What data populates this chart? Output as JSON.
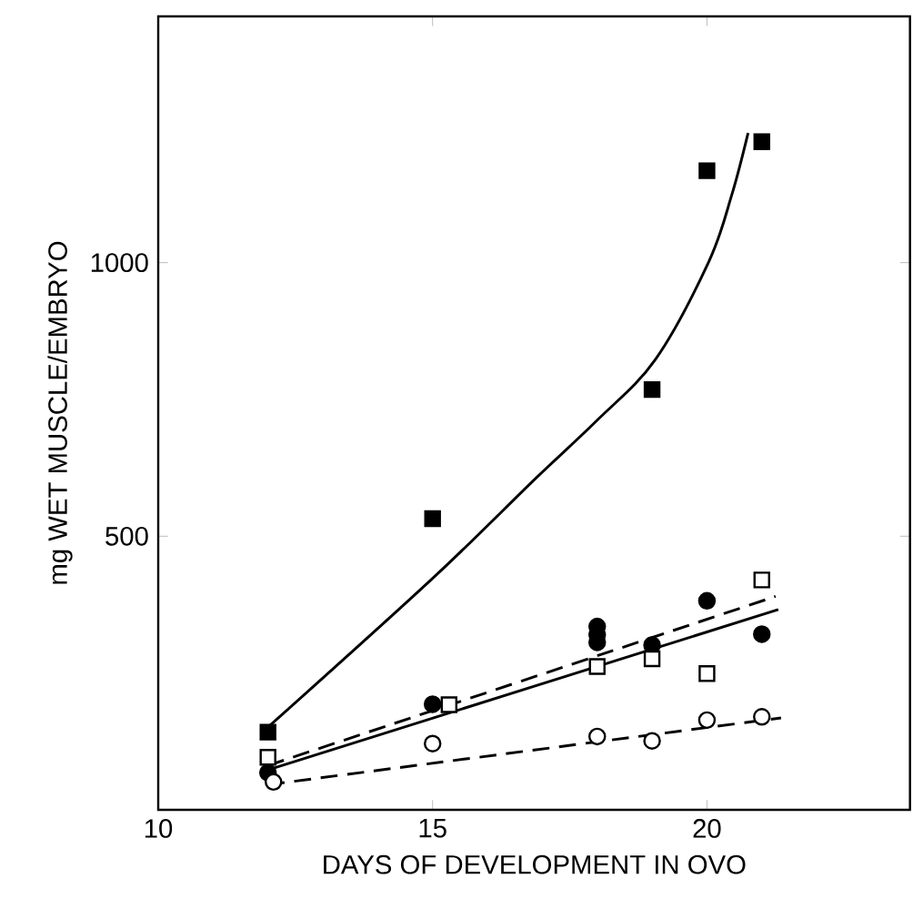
{
  "chart_data": {
    "type": "scatter",
    "xlabel": "DAYS OF DEVELOPMENT IN OVO",
    "ylabel": "mg WET MUSCLE/EMBRYO",
    "xlim": [
      10,
      23.7
    ],
    "ylim": [
      0,
      1450
    ],
    "xticks": [
      10,
      15,
      20
    ],
    "yticks": [
      500,
      1000
    ],
    "series": [
      {
        "color": "#000000",
        "marker": "square",
        "x": [
          12,
          15,
          19,
          20,
          21
        ],
        "values": [
          142,
          532,
          768,
          1168,
          1221
        ]
      },
      {
        "color": "#000000",
        "marker": "circle",
        "x": [
          12,
          15,
          18,
          18,
          18,
          19,
          20,
          21
        ],
        "values": [
          68,
          193,
          306,
          320,
          335,
          301,
          382,
          321
        ]
      },
      {
        "color": "#ffffff",
        "marker": "square",
        "x": [
          12,
          15.3,
          18,
          19,
          20,
          21
        ],
        "values": [
          96,
          192,
          262,
          276,
          249,
          420
        ]
      },
      {
        "color": "#ffffff",
        "marker": "circle",
        "x": [
          12.1,
          15,
          18,
          19,
          20,
          21
        ],
        "values": [
          51,
          121,
          134,
          126,
          164,
          170
        ]
      },
      {
        "type": "line",
        "color": "#000000",
        "marker": "none",
        "line_style": "solid",
        "x": [
          12,
          15,
          16.83,
          18,
          19.06,
          20.03,
          20.45,
          20.75
        ],
        "values": [
          151,
          423,
          601,
          712,
          823,
          1001,
          1123,
          1237
        ]
      },
      {
        "type": "line",
        "color": "#000000",
        "marker": "none",
        "line_style": "solid",
        "x": [
          12,
          21.3
        ],
        "values": [
          73,
          366
        ]
      },
      {
        "type": "line",
        "color": "#000000",
        "marker": "none",
        "line_style": "dashed",
        "x": [
          12,
          21.25
        ],
        "values": [
          81,
          390
        ]
      },
      {
        "type": "line",
        "color": "#000000",
        "marker": "none",
        "line_style": "dashed",
        "x": [
          12,
          21.35
        ],
        "values": [
          46,
          168
        ]
      }
    ]
  }
}
